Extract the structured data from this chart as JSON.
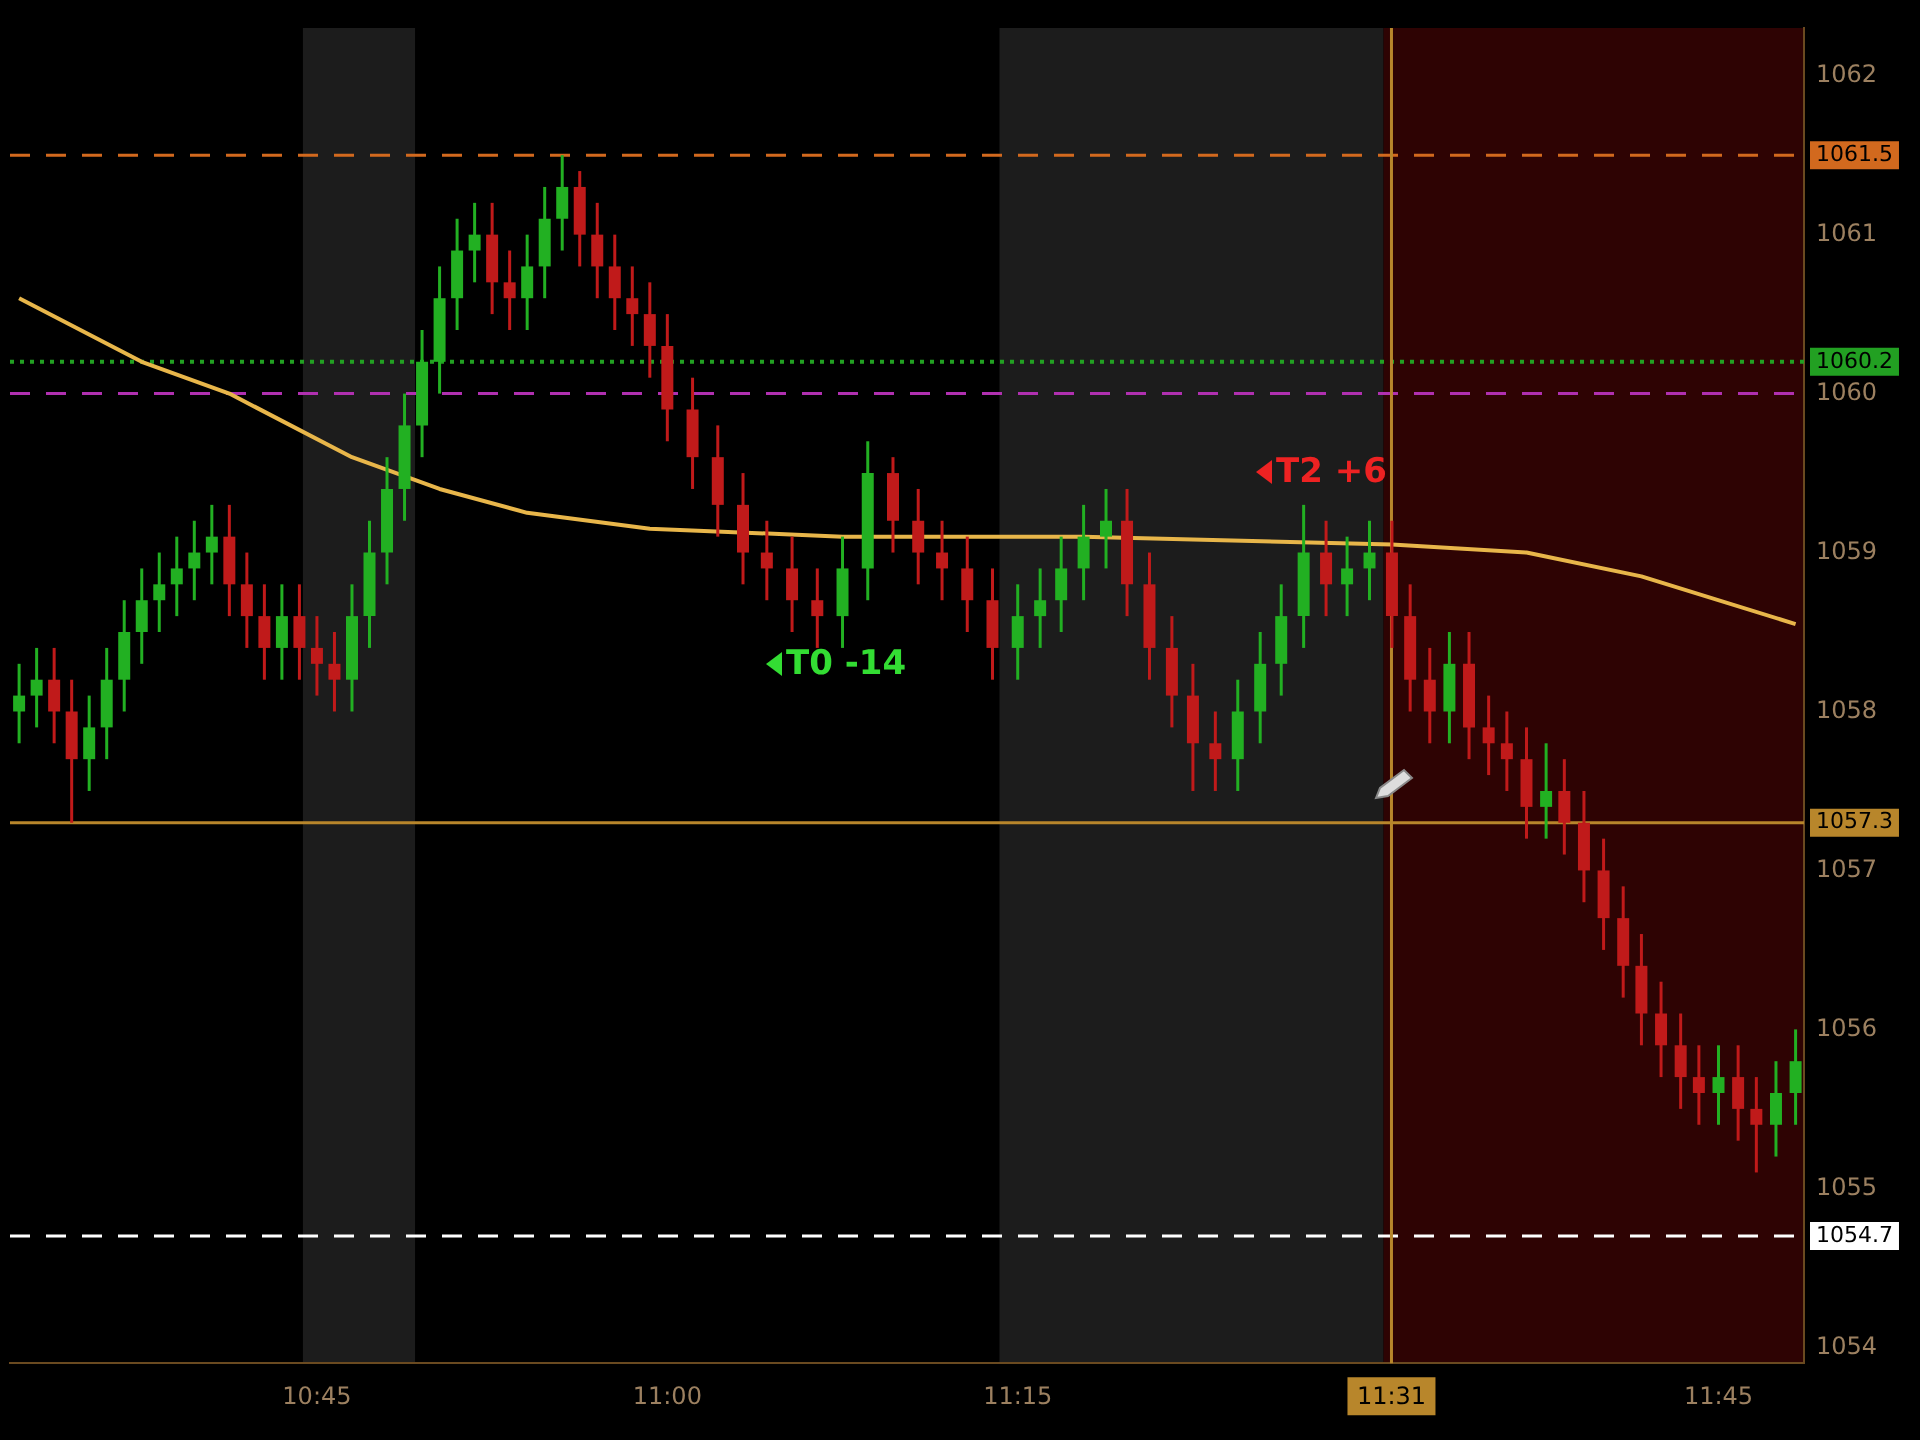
{
  "chart_data": {
    "type": "candlestick",
    "x": [
      10.5375,
      10.55,
      10.5625,
      10.575,
      10.5875,
      10.6,
      10.6125,
      10.625,
      10.6375,
      10.65,
      10.6625,
      10.675,
      10.6875,
      10.7,
      10.7125,
      10.725,
      10.7375,
      10.75,
      10.7625,
      10.775,
      10.7875,
      10.8,
      10.8125,
      10.825,
      10.8375,
      10.85,
      10.8625,
      10.875,
      10.8875,
      10.9,
      10.9125,
      10.925,
      10.9375,
      10.95,
      10.9625,
      10.975,
      10.9875,
      11.0,
      11.018,
      11.036,
      11.054,
      11.071,
      11.089,
      11.107,
      11.125,
      11.143,
      11.161,
      11.179,
      11.196,
      11.214,
      11.232,
      11.25,
      11.266,
      11.281,
      11.297,
      11.313,
      11.328,
      11.344,
      11.36,
      11.375,
      11.391,
      11.407,
      11.423,
      11.438,
      11.454,
      11.47,
      11.485,
      11.501,
      11.517,
      11.53,
      11.544,
      11.558,
      11.572,
      11.586,
      11.599,
      11.613,
      11.627,
      11.64,
      11.654,
      11.668,
      11.682,
      11.695,
      11.709,
      11.723,
      11.736,
      11.75,
      11.764,
      11.777,
      11.791,
      11.805
    ],
    "ohlc": [
      [
        1058.0,
        1058.3,
        1057.8,
        1058.1
      ],
      [
        1058.1,
        1058.4,
        1057.9,
        1058.2
      ],
      [
        1058.2,
        1058.4,
        1057.8,
        1058.0
      ],
      [
        1058.0,
        1058.2,
        1057.3,
        1057.7
      ],
      [
        1057.7,
        1058.1,
        1057.5,
        1057.9
      ],
      [
        1057.9,
        1058.4,
        1057.7,
        1058.2
      ],
      [
        1058.2,
        1058.7,
        1058.0,
        1058.5
      ],
      [
        1058.5,
        1058.9,
        1058.3,
        1058.7
      ],
      [
        1058.7,
        1059.0,
        1058.5,
        1058.8
      ],
      [
        1058.8,
        1059.1,
        1058.6,
        1058.9
      ],
      [
        1058.9,
        1059.2,
        1058.7,
        1059.0
      ],
      [
        1059.0,
        1059.3,
        1058.8,
        1059.1
      ],
      [
        1059.1,
        1059.3,
        1058.6,
        1058.8
      ],
      [
        1058.8,
        1059.0,
        1058.4,
        1058.6
      ],
      [
        1058.6,
        1058.8,
        1058.2,
        1058.4
      ],
      [
        1058.4,
        1058.8,
        1058.2,
        1058.6
      ],
      [
        1058.6,
        1058.8,
        1058.2,
        1058.4
      ],
      [
        1058.4,
        1058.6,
        1058.1,
        1058.3
      ],
      [
        1058.3,
        1058.5,
        1058.0,
        1058.2
      ],
      [
        1058.2,
        1058.8,
        1058.0,
        1058.6
      ],
      [
        1058.6,
        1059.2,
        1058.4,
        1059.0
      ],
      [
        1059.0,
        1059.6,
        1058.8,
        1059.4
      ],
      [
        1059.4,
        1060.0,
        1059.2,
        1059.8
      ],
      [
        1059.8,
        1060.4,
        1059.6,
        1060.2
      ],
      [
        1060.2,
        1060.8,
        1060.0,
        1060.6
      ],
      [
        1060.6,
        1061.1,
        1060.4,
        1060.9
      ],
      [
        1060.9,
        1061.2,
        1060.7,
        1061.0
      ],
      [
        1061.0,
        1061.2,
        1060.5,
        1060.7
      ],
      [
        1060.7,
        1060.9,
        1060.4,
        1060.6
      ],
      [
        1060.6,
        1061.0,
        1060.4,
        1060.8
      ],
      [
        1060.8,
        1061.3,
        1060.6,
        1061.1
      ],
      [
        1061.1,
        1061.5,
        1060.9,
        1061.3
      ],
      [
        1061.3,
        1061.4,
        1060.8,
        1061.0
      ],
      [
        1061.0,
        1061.2,
        1060.6,
        1060.8
      ],
      [
        1060.8,
        1061.0,
        1060.4,
        1060.6
      ],
      [
        1060.6,
        1060.8,
        1060.3,
        1060.5
      ],
      [
        1060.5,
        1060.7,
        1060.1,
        1060.3
      ],
      [
        1060.3,
        1060.5,
        1059.7,
        1059.9
      ],
      [
        1059.9,
        1060.1,
        1059.4,
        1059.6
      ],
      [
        1059.6,
        1059.8,
        1059.1,
        1059.3
      ],
      [
        1059.3,
        1059.5,
        1058.8,
        1059.0
      ],
      [
        1059.0,
        1059.2,
        1058.7,
        1058.9
      ],
      [
        1058.9,
        1059.1,
        1058.5,
        1058.7
      ],
      [
        1058.7,
        1058.9,
        1058.4,
        1058.6
      ],
      [
        1058.6,
        1059.1,
        1058.4,
        1058.9
      ],
      [
        1058.9,
        1059.7,
        1058.7,
        1059.5
      ],
      [
        1059.5,
        1059.6,
        1059.0,
        1059.2
      ],
      [
        1059.2,
        1059.4,
        1058.8,
        1059.0
      ],
      [
        1059.0,
        1059.2,
        1058.7,
        1058.9
      ],
      [
        1058.9,
        1059.1,
        1058.5,
        1058.7
      ],
      [
        1058.7,
        1058.9,
        1058.2,
        1058.4
      ],
      [
        1058.4,
        1058.8,
        1058.2,
        1058.6
      ],
      [
        1058.6,
        1058.9,
        1058.4,
        1058.7
      ],
      [
        1058.7,
        1059.1,
        1058.5,
        1058.9
      ],
      [
        1058.9,
        1059.3,
        1058.7,
        1059.1
      ],
      [
        1059.1,
        1059.4,
        1058.9,
        1059.2
      ],
      [
        1059.2,
        1059.4,
        1058.6,
        1058.8
      ],
      [
        1058.8,
        1059.0,
        1058.2,
        1058.4
      ],
      [
        1058.4,
        1058.6,
        1057.9,
        1058.1
      ],
      [
        1058.1,
        1058.3,
        1057.5,
        1057.8
      ],
      [
        1057.8,
        1058.0,
        1057.5,
        1057.7
      ],
      [
        1057.7,
        1058.2,
        1057.5,
        1058.0
      ],
      [
        1058.0,
        1058.5,
        1057.8,
        1058.3
      ],
      [
        1058.3,
        1058.8,
        1058.1,
        1058.6
      ],
      [
        1058.6,
        1059.3,
        1058.4,
        1059.0
      ],
      [
        1059.0,
        1059.2,
        1058.6,
        1058.8
      ],
      [
        1058.8,
        1059.1,
        1058.6,
        1058.9
      ],
      [
        1058.9,
        1059.2,
        1058.7,
        1059.0
      ],
      [
        1059.0,
        1059.2,
        1058.4,
        1058.6
      ],
      [
        1058.6,
        1058.8,
        1058.0,
        1058.2
      ],
      [
        1058.2,
        1058.4,
        1057.8,
        1058.0
      ],
      [
        1058.0,
        1058.5,
        1057.8,
        1058.3
      ],
      [
        1058.3,
        1058.5,
        1057.7,
        1057.9
      ],
      [
        1057.9,
        1058.1,
        1057.6,
        1057.8
      ],
      [
        1057.8,
        1058.0,
        1057.5,
        1057.7
      ],
      [
        1057.7,
        1057.9,
        1057.2,
        1057.4
      ],
      [
        1057.4,
        1057.8,
        1057.2,
        1057.5
      ],
      [
        1057.5,
        1057.7,
        1057.1,
        1057.3
      ],
      [
        1057.3,
        1057.5,
        1056.8,
        1057.0
      ],
      [
        1057.0,
        1057.2,
        1056.5,
        1056.7
      ],
      [
        1056.7,
        1056.9,
        1056.2,
        1056.4
      ],
      [
        1056.4,
        1056.6,
        1055.9,
        1056.1
      ],
      [
        1056.1,
        1056.3,
        1055.7,
        1055.9
      ],
      [
        1055.9,
        1056.1,
        1055.5,
        1055.7
      ],
      [
        1055.7,
        1055.9,
        1055.4,
        1055.6
      ],
      [
        1055.6,
        1055.9,
        1055.4,
        1055.7
      ],
      [
        1055.7,
        1055.9,
        1055.3,
        1055.5
      ],
      [
        1055.5,
        1055.7,
        1055.1,
        1055.4
      ],
      [
        1055.4,
        1055.8,
        1055.2,
        1055.6
      ],
      [
        1055.6,
        1056.0,
        1055.4,
        1055.8
      ]
    ],
    "series": [
      {
        "type": "line",
        "color": "#e8b64a",
        "x": [
          10.5375,
          10.625,
          10.6875,
          10.775,
          10.8375,
          10.9,
          10.9875,
          11.125,
          11.297,
          11.517,
          11.613,
          11.695,
          11.805
        ],
        "values": [
          1060.6,
          1060.2,
          1060.0,
          1059.6,
          1059.4,
          1059.25,
          1059.15,
          1059.1,
          1059.1,
          1059.05,
          1059.0,
          1058.85,
          1058.55
        ]
      }
    ],
    "xlim": [
      10.531,
      11.811
    ],
    "xticks": [
      {
        "value": 10.75,
        "label": "10:45"
      },
      {
        "value": 11.0,
        "label": "11:00"
      },
      {
        "value": 11.25,
        "label": "11:15"
      },
      {
        "value": 11.516667,
        "label": "11:31"
      },
      {
        "value": 11.75,
        "label": "11:45"
      }
    ],
    "ylim": [
      1053.9,
      1062.3
    ],
    "yticks": [
      1054,
      1055,
      1056,
      1057,
      1058,
      1059,
      1060,
      1061,
      1062
    ],
    "ref_lines": [
      {
        "axis": "y",
        "value": 1061.5,
        "label": "1061.5",
        "color": "#d2691e",
        "line_style": "dashed"
      },
      {
        "axis": "y",
        "value": 1060.2,
        "label": "1060.2",
        "color": "#22a022",
        "line_style": "dotted"
      },
      {
        "axis": "y",
        "value": 1060.0,
        "color": "#b030b0",
        "line_style": "dashed"
      },
      {
        "axis": "y",
        "value": 1057.3,
        "label": "1057.3",
        "color": "#b8862b",
        "line_style": "solid"
      },
      {
        "axis": "y",
        "value": 1054.7,
        "label": "1054.7",
        "color": "#ffffff",
        "line_style": "dashed"
      },
      {
        "axis": "x",
        "value": 11.516667,
        "color": "#b8862b",
        "line_style": "solid"
      }
    ],
    "bands": [
      {
        "axis": "x",
        "from": 10.74,
        "to": 10.82,
        "color": "#1c1c1c"
      },
      {
        "axis": "x",
        "from": 11.237,
        "to": 11.511,
        "color": "#1c1c1c"
      },
      {
        "axis": "x",
        "from": 11.511,
        "to": 11.811,
        "color": "#2e0303"
      }
    ],
    "annotations": [
      "T0 -14",
      "T2 +6"
    ],
    "grid": false,
    "legend": false
  }
}
